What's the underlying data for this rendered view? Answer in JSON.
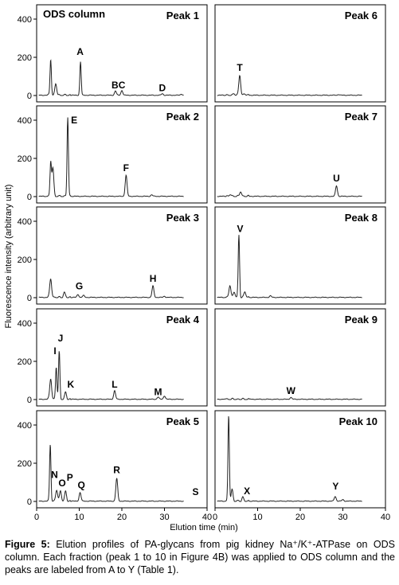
{
  "figure": {
    "ylabel": "Fluorescence intensity (arbitrary unit)",
    "xlabel": "Elution time (min)",
    "x_ticks": [
      "0",
      "10",
      "20",
      "30",
      "40"
    ],
    "y_ticks": [
      "0",
      "200",
      "400"
    ],
    "column_note": "ODS column"
  },
  "caption": {
    "label": "Figure 5:",
    "text": "Elution profiles of PA-glycans from pig kidney Na⁺/K⁺-ATPase on ODS column. Each fraction (peak 1 to 10 in Figure 4B) was applied to ODS column and the peaks are labeled from A to Y (Table 1)."
  },
  "chart_data": [
    {
      "type": "line",
      "title": "Peak 1",
      "xlim": [
        0,
        40
      ],
      "ylim": [
        0,
        450
      ],
      "peaks": [
        {
          "x": 3.3,
          "y": 190
        },
        {
          "x": 4.5,
          "y": 60
        },
        {
          "x": 10.3,
          "y": 175,
          "label": "A"
        },
        {
          "x": 18.5,
          "y": 22,
          "label": "BC"
        },
        {
          "x": 20.0,
          "y": 25
        },
        {
          "x": 29.5,
          "y": 8,
          "label": "D"
        },
        {
          "x": 34.0,
          "y": 6
        }
      ],
      "labels": [
        {
          "text": "A",
          "x": 10.2,
          "y": 230
        },
        {
          "text": "BC",
          "x": 19.2,
          "y": 55
        },
        {
          "text": "D",
          "x": 29.5,
          "y": 40
        }
      ]
    },
    {
      "type": "line",
      "title": "Peak 6",
      "xlim": [
        0,
        40
      ],
      "ylim": [
        0,
        450
      ],
      "peaks": [
        {
          "x": 4.5,
          "y": 10
        },
        {
          "x": 5.8,
          "y": 105,
          "label": "T"
        },
        {
          "x": 7.0,
          "y": 8
        },
        {
          "x": 29.0,
          "y": 4
        }
      ],
      "labels": [
        {
          "text": "T",
          "x": 5.8,
          "y": 145
        }
      ]
    },
    {
      "type": "line",
      "title": "Peak 2",
      "xlim": [
        0,
        40
      ],
      "ylim": [
        0,
        450
      ],
      "peaks": [
        {
          "x": 3.3,
          "y": 175
        },
        {
          "x": 3.8,
          "y": 150
        },
        {
          "x": 7.3,
          "y": 415,
          "label": "E"
        },
        {
          "x": 21.0,
          "y": 110,
          "label": "F"
        },
        {
          "x": 27.0,
          "y": 8
        }
      ],
      "labels": [
        {
          "text": "E",
          "x": 8.8,
          "y": 400
        },
        {
          "text": "F",
          "x": 21.0,
          "y": 150
        }
      ]
    },
    {
      "type": "line",
      "title": "Peak 7",
      "xlim": [
        0,
        40
      ],
      "ylim": [
        0,
        450
      ],
      "peaks": [
        {
          "x": 3.5,
          "y": 10
        },
        {
          "x": 6.0,
          "y": 25
        },
        {
          "x": 28.5,
          "y": 55,
          "label": "U"
        }
      ],
      "labels": [
        {
          "text": "U",
          "x": 28.5,
          "y": 95
        }
      ]
    },
    {
      "type": "line",
      "title": "Peak 3",
      "xlim": [
        0,
        40
      ],
      "ylim": [
        0,
        450
      ],
      "peaks": [
        {
          "x": 3.3,
          "y": 100
        },
        {
          "x": 6.5,
          "y": 25
        },
        {
          "x": 9.7,
          "y": 15,
          "label": "G"
        },
        {
          "x": 11.0,
          "y": 10
        },
        {
          "x": 27.3,
          "y": 60,
          "label": "H"
        },
        {
          "x": 30.0,
          "y": 6
        }
      ],
      "labels": [
        {
          "text": "G",
          "x": 10.0,
          "y": 60
        },
        {
          "text": "H",
          "x": 27.3,
          "y": 100
        }
      ]
    },
    {
      "type": "line",
      "title": "Peak 8",
      "xlim": [
        0,
        40
      ],
      "ylim": [
        0,
        450
      ],
      "peaks": [
        {
          "x": 3.5,
          "y": 65
        },
        {
          "x": 4.5,
          "y": 30
        },
        {
          "x": 5.6,
          "y": 325,
          "label": "V"
        },
        {
          "x": 7.0,
          "y": 30
        },
        {
          "x": 13.0,
          "y": 8
        }
      ],
      "labels": [
        {
          "text": "V",
          "x": 5.9,
          "y": 360
        }
      ]
    },
    {
      "type": "line",
      "title": "Peak 4",
      "xlim": [
        0,
        40
      ],
      "ylim": [
        0,
        450
      ],
      "peaks": [
        {
          "x": 3.3,
          "y": 110
        },
        {
          "x": 4.6,
          "y": 170,
          "label": "I"
        },
        {
          "x": 5.3,
          "y": 250,
          "label": "J"
        },
        {
          "x": 6.8,
          "y": 35,
          "label": "K"
        },
        {
          "x": 18.3,
          "y": 45,
          "label": "L"
        },
        {
          "x": 28.5,
          "y": 12,
          "label": "M"
        },
        {
          "x": 30.0,
          "y": 18
        }
      ],
      "labels": [
        {
          "text": "I",
          "x": 4.3,
          "y": 255
        },
        {
          "text": "J",
          "x": 5.6,
          "y": 320
        },
        {
          "text": "K",
          "x": 8.0,
          "y": 80
        },
        {
          "text": "L",
          "x": 18.3,
          "y": 80
        },
        {
          "text": "M",
          "x": 28.5,
          "y": 40
        }
      ]
    },
    {
      "type": "line",
      "title": "Peak 9",
      "xlim": [
        0,
        40
      ],
      "ylim": [
        0,
        450
      ],
      "peaks": [
        {
          "x": 17.8,
          "y": 10,
          "label": "W"
        }
      ],
      "labels": [
        {
          "text": "W",
          "x": 17.8,
          "y": 45
        }
      ]
    },
    {
      "type": "line",
      "title": "Peak 5",
      "xlim": [
        0,
        40
      ],
      "ylim": [
        0,
        450
      ],
      "peaks": [
        {
          "x": 3.2,
          "y": 300
        },
        {
          "x": 4.7,
          "y": 60,
          "label": "N"
        },
        {
          "x": 5.6,
          "y": 55,
          "label": "O"
        },
        {
          "x": 6.8,
          "y": 50,
          "label": "P"
        },
        {
          "x": 10.2,
          "y": 45,
          "label": "Q"
        },
        {
          "x": 18.8,
          "y": 120,
          "label": "R"
        },
        {
          "x": 37.3,
          "y": 12,
          "label": "S"
        }
      ],
      "labels": [
        {
          "text": "N",
          "x": 4.2,
          "y": 140
        },
        {
          "text": "O",
          "x": 6.0,
          "y": 95
        },
        {
          "text": "P",
          "x": 7.8,
          "y": 125
        },
        {
          "text": "Q",
          "x": 10.5,
          "y": 85
        },
        {
          "text": "R",
          "x": 18.8,
          "y": 165
        },
        {
          "text": "S",
          "x": 37.3,
          "y": 50
        }
      ]
    },
    {
      "type": "line",
      "title": "Peak 10",
      "xlim": [
        0,
        40
      ],
      "ylim": [
        0,
        450
      ],
      "peaks": [
        {
          "x": 3.2,
          "y": 450
        },
        {
          "x": 4.0,
          "y": 60
        },
        {
          "x": 6.5,
          "y": 20,
          "label": "X"
        },
        {
          "x": 28.2,
          "y": 25,
          "label": "Y"
        },
        {
          "x": 30.0,
          "y": 8
        }
      ],
      "labels": [
        {
          "text": "X",
          "x": 7.5,
          "y": 55
        },
        {
          "text": "Y",
          "x": 28.3,
          "y": 80
        }
      ]
    }
  ]
}
